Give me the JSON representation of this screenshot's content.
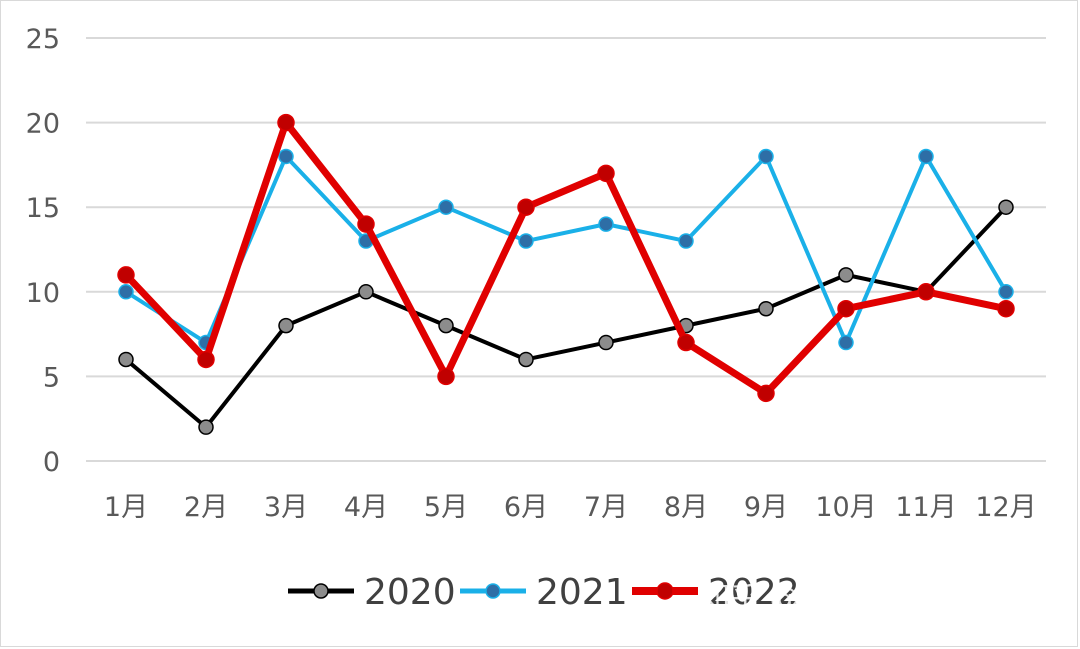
{
  "chart_data": {
    "type": "line",
    "title": "",
    "xlabel": "",
    "ylabel": "",
    "categories": [
      "1月",
      "2月",
      "3月",
      "4月",
      "5月",
      "6月",
      "7月",
      "8月",
      "9月",
      "10月",
      "11月",
      "12月"
    ],
    "ylim": [
      0,
      25
    ],
    "yticks": [
      "0",
      "5",
      "10",
      "15",
      "20",
      "25"
    ],
    "grid": true,
    "legend": "bottom",
    "series": [
      {
        "name": "2020",
        "color": "#000000",
        "marker_color": "#8c8c8c",
        "values": [
          6,
          2,
          8,
          10,
          8,
          6,
          7,
          8,
          9,
          11,
          10,
          15
        ]
      },
      {
        "name": "2021",
        "color": "#1ab0e8",
        "marker_color": "#2e6ea6",
        "values": [
          10,
          7,
          18,
          13,
          15,
          13,
          14,
          13,
          18,
          7,
          18,
          10
        ]
      },
      {
        "name": "2022",
        "color": "#e00000",
        "marker_color": "#c00000",
        "values": [
          11,
          6,
          20,
          14,
          5,
          15,
          17,
          7,
          4,
          9,
          10,
          9
        ]
      }
    ]
  },
  "watermark": "知乎 @王杰jeffsong2023"
}
